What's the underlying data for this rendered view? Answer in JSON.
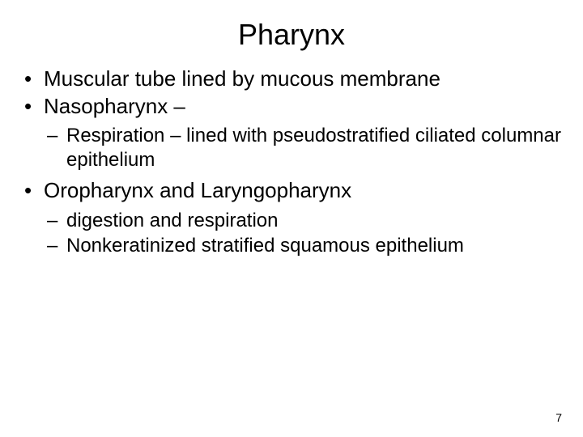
{
  "title": "Pharynx",
  "bullets": {
    "b1": "Muscular tube lined by mucous membrane",
    "b2": "Nasopharynx –",
    "b2_sub1": "Respiration – lined with pseudostratified ciliated columnar epithelium",
    "b3": "Oropharynx and Laryngopharynx",
    "b3_sub1": " digestion and respiration",
    "b3_sub2": " Nonkeratinized stratified squamous epithelium"
  },
  "page_number": "7",
  "style": {
    "background_color": "#ffffff",
    "text_color": "#000000",
    "title_fontsize": 36,
    "l1_fontsize": 26,
    "l2_fontsize": 24,
    "font_family": "Arial"
  }
}
